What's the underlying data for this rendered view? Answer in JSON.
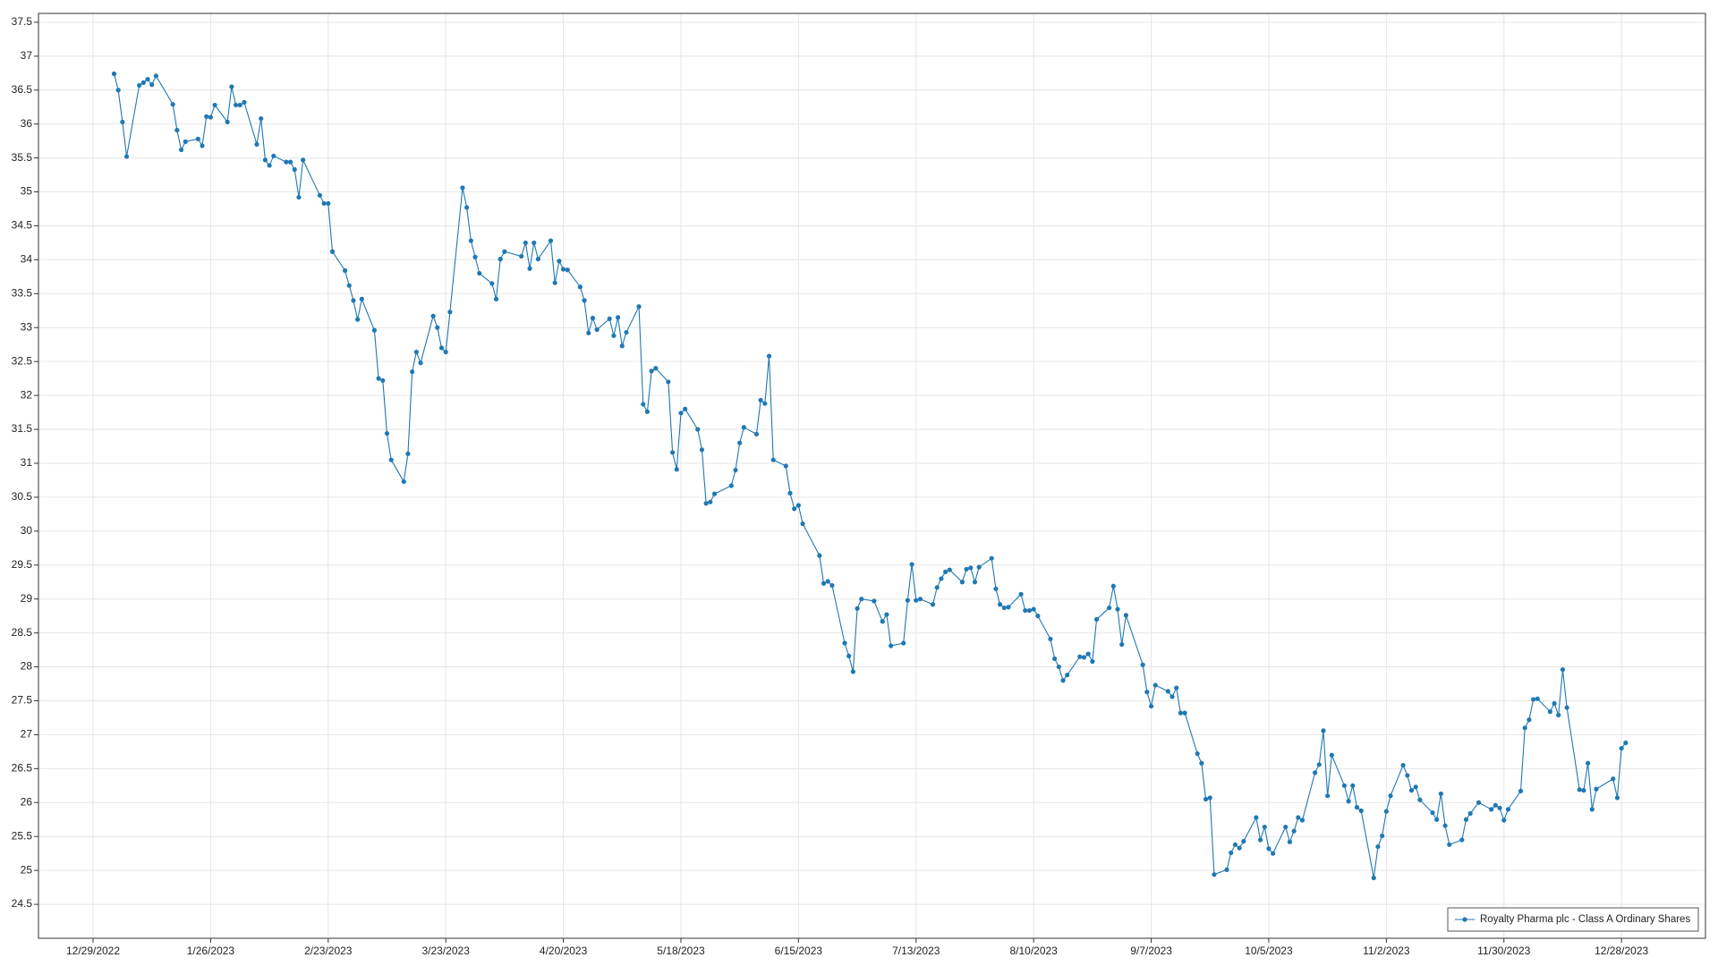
{
  "chart_data": {
    "type": "line",
    "x": [
      "1/3/2023",
      "1/4/2023",
      "1/5/2023",
      "1/6/2023",
      "1/9/2023",
      "1/10/2023",
      "1/11/2023",
      "1/12/2023",
      "1/13/2023",
      "1/17/2023",
      "1/18/2023",
      "1/19/2023",
      "1/20/2023",
      "1/23/2023",
      "1/24/2023",
      "1/25/2023",
      "1/26/2023",
      "1/27/2023",
      "1/30/2023",
      "1/31/2023",
      "2/1/2023",
      "2/2/2023",
      "2/3/2023",
      "2/6/2023",
      "2/7/2023",
      "2/8/2023",
      "2/9/2023",
      "2/10/2023",
      "2/13/2023",
      "2/14/2023",
      "2/15/2023",
      "2/16/2023",
      "2/17/2023",
      "2/21/2023",
      "2/22/2023",
      "2/23/2023",
      "2/24/2023",
      "2/27/2023",
      "2/28/2023",
      "3/1/2023",
      "3/2/2023",
      "3/3/2023",
      "3/6/2023",
      "3/7/2023",
      "3/8/2023",
      "3/9/2023",
      "3/10/2023",
      "3/13/2023",
      "3/14/2023",
      "3/15/2023",
      "3/16/2023",
      "3/17/2023",
      "3/20/2023",
      "3/21/2023",
      "3/22/2023",
      "3/23/2023",
      "3/24/2023",
      "3/27/2023",
      "3/28/2023",
      "3/29/2023",
      "3/30/2023",
      "3/31/2023",
      "4/3/2023",
      "4/4/2023",
      "4/5/2023",
      "4/6/2023",
      "4/10/2023",
      "4/11/2023",
      "4/12/2023",
      "4/13/2023",
      "4/14/2023",
      "4/17/2023",
      "4/18/2023",
      "4/19/2023",
      "4/20/2023",
      "4/21/2023",
      "4/24/2023",
      "4/25/2023",
      "4/26/2023",
      "4/27/2023",
      "4/28/2023",
      "5/1/2023",
      "5/2/2023",
      "5/3/2023",
      "5/4/2023",
      "5/5/2023",
      "5/8/2023",
      "5/9/2023",
      "5/10/2023",
      "5/11/2023",
      "5/12/2023",
      "5/15/2023",
      "5/16/2023",
      "5/17/2023",
      "5/18/2023",
      "5/19/2023",
      "5/22/2023",
      "5/23/2023",
      "5/24/2023",
      "5/25/2023",
      "5/26/2023",
      "5/30/2023",
      "5/31/2023",
      "6/1/2023",
      "6/2/2023",
      "6/5/2023",
      "6/6/2023",
      "6/7/2023",
      "6/8/2023",
      "6/9/2023",
      "6/12/2023",
      "6/13/2023",
      "6/14/2023",
      "6/15/2023",
      "6/16/2023",
      "6/20/2023",
      "6/21/2023",
      "6/22/2023",
      "6/23/2023",
      "6/26/2023",
      "6/27/2023",
      "6/28/2023",
      "6/29/2023",
      "6/30/2023",
      "7/3/2023",
      "7/5/2023",
      "7/6/2023",
      "7/7/2023",
      "7/10/2023",
      "7/11/2023",
      "7/12/2023",
      "7/13/2023",
      "7/14/2023",
      "7/17/2023",
      "7/18/2023",
      "7/19/2023",
      "7/20/2023",
      "7/21/2023",
      "7/24/2023",
      "7/25/2023",
      "7/26/2023",
      "7/27/2023",
      "7/28/2023",
      "7/31/2023",
      "8/1/2023",
      "8/2/2023",
      "8/3/2023",
      "8/4/2023",
      "8/7/2023",
      "8/8/2023",
      "8/9/2023",
      "8/10/2023",
      "8/11/2023",
      "8/14/2023",
      "8/15/2023",
      "8/16/2023",
      "8/17/2023",
      "8/18/2023",
      "8/21/2023",
      "8/22/2023",
      "8/23/2023",
      "8/24/2023",
      "8/25/2023",
      "8/28/2023",
      "8/29/2023",
      "8/30/2023",
      "8/31/2023",
      "9/1/2023",
      "9/5/2023",
      "9/6/2023",
      "9/7/2023",
      "9/8/2023",
      "9/11/2023",
      "9/12/2023",
      "9/13/2023",
      "9/14/2023",
      "9/15/2023",
      "9/18/2023",
      "9/19/2023",
      "9/20/2023",
      "9/21/2023",
      "9/22/2023",
      "9/25/2023",
      "9/26/2023",
      "9/27/2023",
      "9/28/2023",
      "9/29/2023",
      "10/2/2023",
      "10/3/2023",
      "10/4/2023",
      "10/5/2023",
      "10/6/2023",
      "10/9/2023",
      "10/10/2023",
      "10/11/2023",
      "10/12/2023",
      "10/13/2023",
      "10/16/2023",
      "10/17/2023",
      "10/18/2023",
      "10/19/2023",
      "10/20/2023",
      "10/23/2023",
      "10/24/2023",
      "10/25/2023",
      "10/26/2023",
      "10/27/2023",
      "10/30/2023",
      "10/31/2023",
      "11/1/2023",
      "11/2/2023",
      "11/3/2023",
      "11/6/2023",
      "11/7/2023",
      "11/8/2023",
      "11/9/2023",
      "11/10/2023",
      "11/13/2023",
      "11/14/2023",
      "11/15/2023",
      "11/16/2023",
      "11/17/2023",
      "11/20/2023",
      "11/21/2023",
      "11/22/2023",
      "11/24/2023",
      "11/27/2023",
      "11/28/2023",
      "11/29/2023",
      "11/30/2023",
      "12/1/2023",
      "12/4/2023",
      "12/5/2023",
      "12/6/2023",
      "12/7/2023",
      "12/8/2023",
      "12/11/2023",
      "12/12/2023",
      "12/13/2023",
      "12/14/2023",
      "12/15/2023",
      "12/18/2023",
      "12/19/2023",
      "12/20/2023",
      "12/21/2023",
      "12/22/2023",
      "12/26/2023",
      "12/27/2023",
      "12/28/2023",
      "12/29/2023"
    ],
    "series": [
      {
        "name": "Royalty Pharma plc - Class A Ordinary Shares",
        "color": "#1f78b4",
        "values": [
          36.74,
          36.5,
          36.03,
          35.52,
          36.57,
          36.61,
          36.66,
          36.58,
          36.71,
          36.29,
          35.91,
          35.62,
          35.74,
          35.78,
          35.68,
          36.11,
          36.1,
          36.28,
          36.03,
          36.55,
          36.28,
          36.28,
          36.32,
          35.7,
          36.08,
          35.47,
          35.39,
          35.53,
          35.44,
          35.44,
          35.33,
          34.92,
          35.47,
          34.95,
          34.83,
          34.83,
          34.12,
          33.84,
          33.62,
          33.4,
          33.12,
          33.42,
          32.96,
          32.25,
          32.22,
          31.44,
          31.05,
          30.73,
          31.14,
          32.35,
          32.64,
          32.48,
          33.17,
          33.0,
          32.7,
          32.64,
          33.23,
          35.06,
          34.77,
          34.28,
          34.04,
          33.8,
          33.65,
          33.42,
          34.01,
          34.12,
          34.05,
          34.25,
          33.87,
          34.25,
          34.01,
          34.28,
          33.66,
          33.98,
          33.86,
          33.85,
          33.6,
          33.4,
          32.92,
          33.14,
          32.97,
          33.13,
          32.88,
          33.15,
          32.73,
          32.93,
          33.31,
          31.87,
          31.76,
          32.36,
          32.4,
          32.2,
          31.16,
          30.91,
          31.74,
          31.8,
          31.5,
          31.2,
          30.41,
          30.43,
          30.55,
          30.67,
          30.9,
          31.3,
          31.53,
          31.43,
          31.93,
          31.88,
          32.58,
          31.05,
          30.96,
          30.56,
          30.33,
          30.38,
          30.11,
          29.64,
          29.23,
          29.26,
          29.2,
          28.35,
          28.16,
          27.93,
          28.86,
          29.0,
          28.97,
          28.67,
          28.77,
          28.31,
          28.35,
          28.98,
          29.51,
          28.98,
          29.0,
          28.92,
          29.17,
          29.3,
          29.4,
          29.43,
          29.25,
          29.44,
          29.46,
          29.25,
          29.47,
          29.6,
          29.15,
          28.92,
          28.87,
          28.88,
          29.07,
          28.83,
          28.83,
          28.85,
          28.75,
          28.41,
          28.12,
          28.0,
          27.8,
          27.88,
          28.15,
          28.14,
          28.19,
          28.08,
          28.7,
          28.87,
          29.19,
          28.85,
          28.33,
          28.76,
          28.03,
          27.63,
          27.42,
          27.73,
          27.64,
          27.56,
          27.69,
          27.32,
          27.32,
          26.72,
          26.58,
          26.05,
          26.07,
          24.94,
          25.01,
          25.26,
          25.38,
          25.33,
          25.43,
          25.78,
          25.45,
          25.64,
          25.32,
          25.25,
          25.64,
          25.42,
          25.58,
          25.78,
          25.74,
          26.44,
          26.56,
          27.06,
          26.1,
          26.7,
          26.25,
          26.02,
          26.25,
          25.93,
          25.88,
          24.89,
          25.35,
          25.51,
          25.87,
          26.1,
          26.55,
          26.4,
          26.18,
          26.23,
          26.04,
          25.85,
          25.75,
          26.13,
          25.66,
          25.38,
          25.45,
          25.75,
          25.84,
          26.0,
          25.9,
          25.96,
          25.92,
          25.74,
          25.9,
          26.17,
          27.1,
          27.22,
          27.52,
          27.53,
          27.34,
          27.46,
          27.29,
          27.96,
          27.4,
          26.19,
          26.18,
          26.58,
          25.9,
          26.2,
          26.35,
          26.07,
          26.8,
          26.88
        ]
      }
    ],
    "xlim": [
      "12/16/2022",
      "1/17/2024"
    ],
    "xticks": [
      "12/29/2022",
      "1/26/2023",
      "2/23/2023",
      "3/23/2023",
      "4/20/2023",
      "5/18/2023",
      "6/15/2023",
      "7/13/2023",
      "8/10/2023",
      "9/7/2023",
      "10/5/2023",
      "11/2/2023",
      "11/30/2023",
      "12/28/2023"
    ],
    "ylim": [
      24,
      37.63
    ],
    "yticks": [
      24.5,
      25,
      25.5,
      26,
      26.5,
      27,
      27.5,
      28,
      28.5,
      29,
      29.5,
      30,
      30.5,
      31,
      31.5,
      32,
      32.5,
      33,
      33.5,
      34,
      34.5,
      35,
      35.5,
      36,
      36.5,
      37,
      37.5
    ],
    "grid": true,
    "legend": "lower right",
    "markers": true
  }
}
